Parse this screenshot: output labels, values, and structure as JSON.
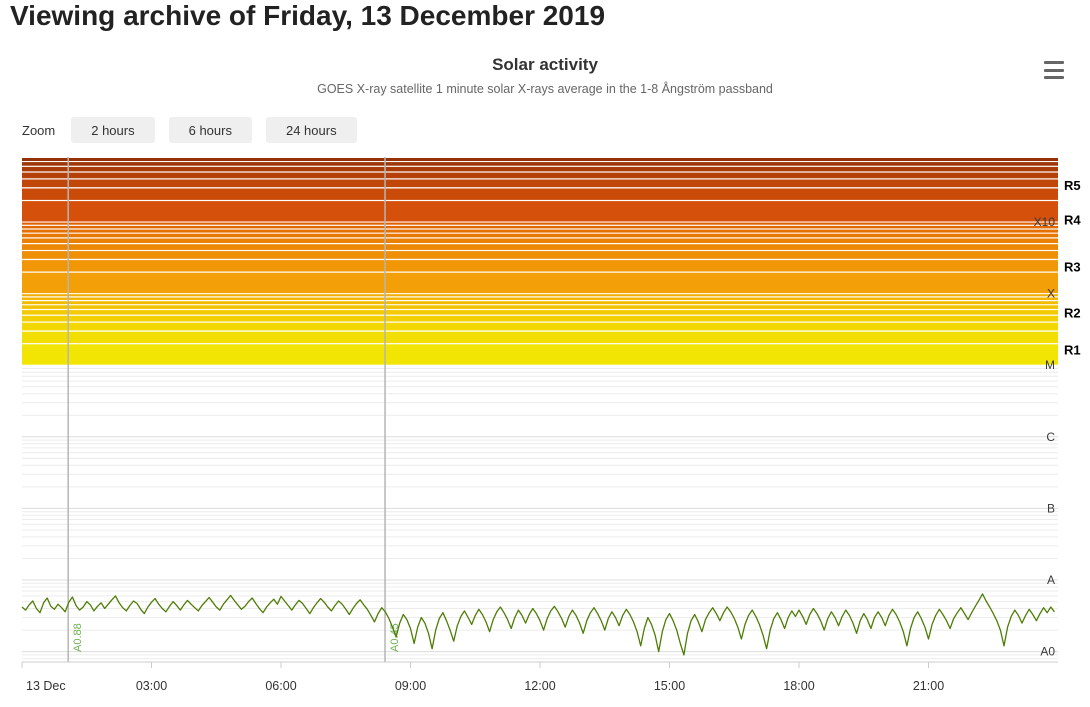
{
  "page": {
    "heading": "Viewing archive of Friday, 13 December 2019"
  },
  "chart": {
    "title": "Solar activity",
    "subtitle": "GOES X-ray satellite 1 minute solar X-rays average in the 1-8 Ångström passband",
    "zoom_label": "Zoom",
    "zoom_buttons": [
      "2 hours",
      "6 hours",
      "24 hours"
    ]
  },
  "chart_data": {
    "type": "line",
    "title": "Solar activity",
    "subtitle": "GOES X-ray satellite 1 minute solar X-rays average in the 1-8 Ångström passband",
    "x_ticks": [
      "13 Dec",
      "03:00",
      "06:00",
      "09:00",
      "12:00",
      "15:00",
      "18:00",
      "21:00"
    ],
    "x_tick_hours": [
      0,
      3,
      6,
      9,
      12,
      15,
      18,
      21
    ],
    "x_range_hours": [
      0,
      24
    ],
    "y_log_range": [
      -9.145,
      -2.092
    ],
    "y_axis_labels": [
      {
        "label": "X10",
        "flux": 0.001
      },
      {
        "label": "X",
        "flux": 0.0001
      },
      {
        "label": "M",
        "flux": 1e-05
      },
      {
        "label": "C",
        "flux": 1e-06
      },
      {
        "label": "B",
        "flux": 1e-07
      },
      {
        "label": "A",
        "flux": 1e-08
      },
      {
        "label": "A0",
        "flux": 1e-09
      }
    ],
    "right_scale_labels": [
      {
        "label": "R5",
        "flux": 0.0032
      },
      {
        "label": "R4",
        "flux": 0.00105
      },
      {
        "label": "R3",
        "flux": 0.00023
      },
      {
        "label": "R2",
        "flux": 5.3e-05
      },
      {
        "label": "R1",
        "flux": 1.6e-05
      }
    ],
    "bands": [
      {
        "from": 1e-05,
        "to": 0.0001,
        "color_from": "#f3e503",
        "color_to": "#f2ae03"
      },
      {
        "from": 0.0001,
        "to": 0.001,
        "color_from": "#f39f07",
        "color_to": "#e06000"
      },
      {
        "from": 0.001,
        "to": 0.01,
        "color_from": "#d5500a",
        "color_to": "#7f2704"
      }
    ],
    "plot_lines": [
      {
        "hour": 1.07,
        "label": "A0.88"
      },
      {
        "hour": 8.41,
        "label": "A0.45"
      }
    ],
    "plot_line_color": "#b5b5b5",
    "plot_line_label_color": "#6fb352",
    "series": {
      "color": "#4e7d05",
      "start_hour": 0,
      "interval_minutes": 5,
      "unit_exponent": -9,
      "values_e9": [
        4.2,
        3.8,
        4.5,
        5.1,
        4.0,
        3.5,
        4.8,
        5.6,
        4.3,
        3.9,
        4.6,
        4.1,
        3.6,
        4.9,
        5.8,
        4.4,
        3.8,
        4.2,
        5.0,
        4.5,
        3.7,
        4.3,
        4.8,
        4.0,
        4.6,
        5.3,
        6.0,
        4.8,
        4.1,
        3.7,
        4.4,
        5.1,
        4.7,
        3.9,
        3.4,
        4.2,
        4.9,
        5.5,
        4.6,
        4.0,
        3.6,
        4.3,
        5.0,
        4.4,
        3.8,
        4.5,
        5.2,
        4.6,
        4.1,
        3.7,
        4.4,
        5.0,
        5.7,
        4.9,
        4.2,
        3.8,
        4.6,
        5.3,
        6.1,
        5.2,
        4.5,
        3.9,
        4.3,
        5.0,
        5.6,
        4.7,
        4.0,
        3.5,
        4.2,
        4.8,
        5.4,
        4.6,
        5.9,
        5.1,
        4.4,
        3.8,
        4.5,
        5.2,
        4.7,
        4.0,
        3.4,
        4.1,
        4.8,
        5.5,
        4.9,
        4.2,
        3.7,
        4.4,
        5.1,
        4.6,
        3.9,
        3.3,
        4.0,
        4.7,
        5.3,
        4.5,
        3.9,
        3.2,
        2.6,
        3.4,
        4.1,
        3.6,
        2.9,
        2.2,
        1.6,
        2.5,
        3.3,
        2.8,
        2.1,
        1.3,
        2.2,
        3.0,
        2.5,
        1.8,
        1.1,
        2.0,
        2.9,
        3.5,
        2.7,
        2.0,
        1.4,
        2.3,
        3.1,
        3.7,
        3.0,
        2.4,
        3.2,
        3.9,
        3.3,
        2.6,
        1.9,
        2.8,
        3.6,
        4.2,
        3.5,
        2.8,
        2.1,
        3.0,
        3.8,
        3.2,
        2.5,
        3.3,
        4.0,
        3.4,
        2.7,
        2.0,
        2.9,
        3.7,
        4.3,
        3.6,
        2.9,
        2.2,
        3.1,
        3.8,
        3.2,
        2.5,
        1.8,
        2.7,
        3.5,
        4.1,
        3.4,
        2.7,
        2.0,
        2.9,
        3.6,
        3.0,
        2.3,
        3.2,
        3.9,
        3.3,
        2.6,
        1.9,
        1.2,
        2.1,
        3.0,
        2.4,
        1.7,
        1.0,
        1.9,
        2.8,
        3.4,
        2.7,
        2.0,
        1.3,
        0.9,
        1.8,
        2.7,
        3.3,
        2.6,
        1.9,
        2.8,
        3.5,
        4.1,
        3.4,
        2.7,
        3.5,
        4.2,
        3.6,
        2.9,
        2.2,
        1.5,
        2.4,
        3.2,
        3.8,
        3.1,
        2.4,
        1.7,
        1.1,
        2.0,
        2.9,
        3.5,
        2.8,
        2.1,
        3.0,
        3.7,
        3.1,
        3.8,
        3.1,
        2.4,
        3.3,
        4.0,
        3.4,
        2.7,
        2.0,
        2.9,
        3.6,
        3.0,
        2.3,
        3.1,
        3.8,
        3.2,
        2.5,
        1.8,
        2.7,
        3.4,
        2.8,
        2.1,
        3.0,
        3.6,
        3.0,
        2.3,
        3.2,
        3.9,
        3.3,
        2.6,
        1.9,
        1.2,
        2.1,
        3.0,
        3.6,
        2.9,
        2.2,
        1.5,
        2.4,
        3.2,
        3.9,
        3.3,
        2.7,
        2.1,
        2.9,
        3.5,
        4.1,
        3.4,
        2.8,
        3.5,
        4.3,
        5.2,
        6.4,
        5.1,
        4.2,
        3.4,
        2.7,
        2.0,
        1.2,
        2.2,
        3.1,
        3.8,
        3.2,
        2.5,
        3.2,
        3.9,
        3.3,
        2.7,
        3.4,
        4.1,
        3.5,
        4.2,
        3.6
      ]
    }
  }
}
